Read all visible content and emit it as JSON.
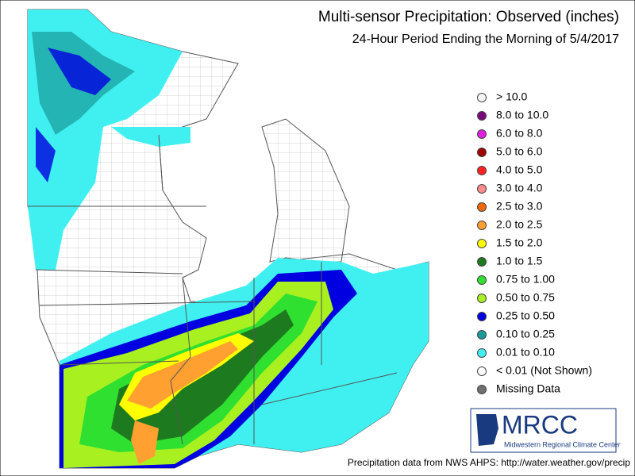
{
  "header": {
    "title": "Multi-sensor Precipitation:  Observed (inches)",
    "subtitle": "24-Hour Period Ending the Morning of 5/4/2017"
  },
  "legend": {
    "items": [
      {
        "label": "> 10.0",
        "color": "#f4f4f4"
      },
      {
        "label": "8.0 to 10.0",
        "color": "#7a0a7a"
      },
      {
        "label": "6.0 to 8.0",
        "color": "#e020e0"
      },
      {
        "label": "5.0 to 6.0",
        "color": "#a00000"
      },
      {
        "label": "4.0 to 5.0",
        "color": "#ff2020"
      },
      {
        "label": "3.0 to 4.0",
        "color": "#ff8c8c"
      },
      {
        "label": "2.5 to 3.0",
        "color": "#f06a00"
      },
      {
        "label": "2.0 to 2.5",
        "color": "#ffa030"
      },
      {
        "label": "1.5 to 2.0",
        "color": "#ffff00"
      },
      {
        "label": "1.0 to 1.5",
        "color": "#1e7a1e"
      },
      {
        "label": "0.75 to 1.00",
        "color": "#30e030"
      },
      {
        "label": "0.50 to 0.75",
        "color": "#a8f020"
      },
      {
        "label": "0.25 to 0.50",
        "color": "#0000e0"
      },
      {
        "label": "0.10 to 0.25",
        "color": "#1a9a9a"
      },
      {
        "label": "0.01 to 0.10",
        "color": "#40f0f0"
      },
      {
        "label": "< 0.01 (Not Shown)",
        "color": "#ffffff"
      },
      {
        "label": "Missing Data",
        "color": "#707070"
      }
    ]
  },
  "logo": {
    "name": "MRCC",
    "full_name": "Midwestern Regional Climate Center"
  },
  "footer": {
    "source": "Precipitation data from NWS AHPS: http://water.weather.gov/precip"
  }
}
